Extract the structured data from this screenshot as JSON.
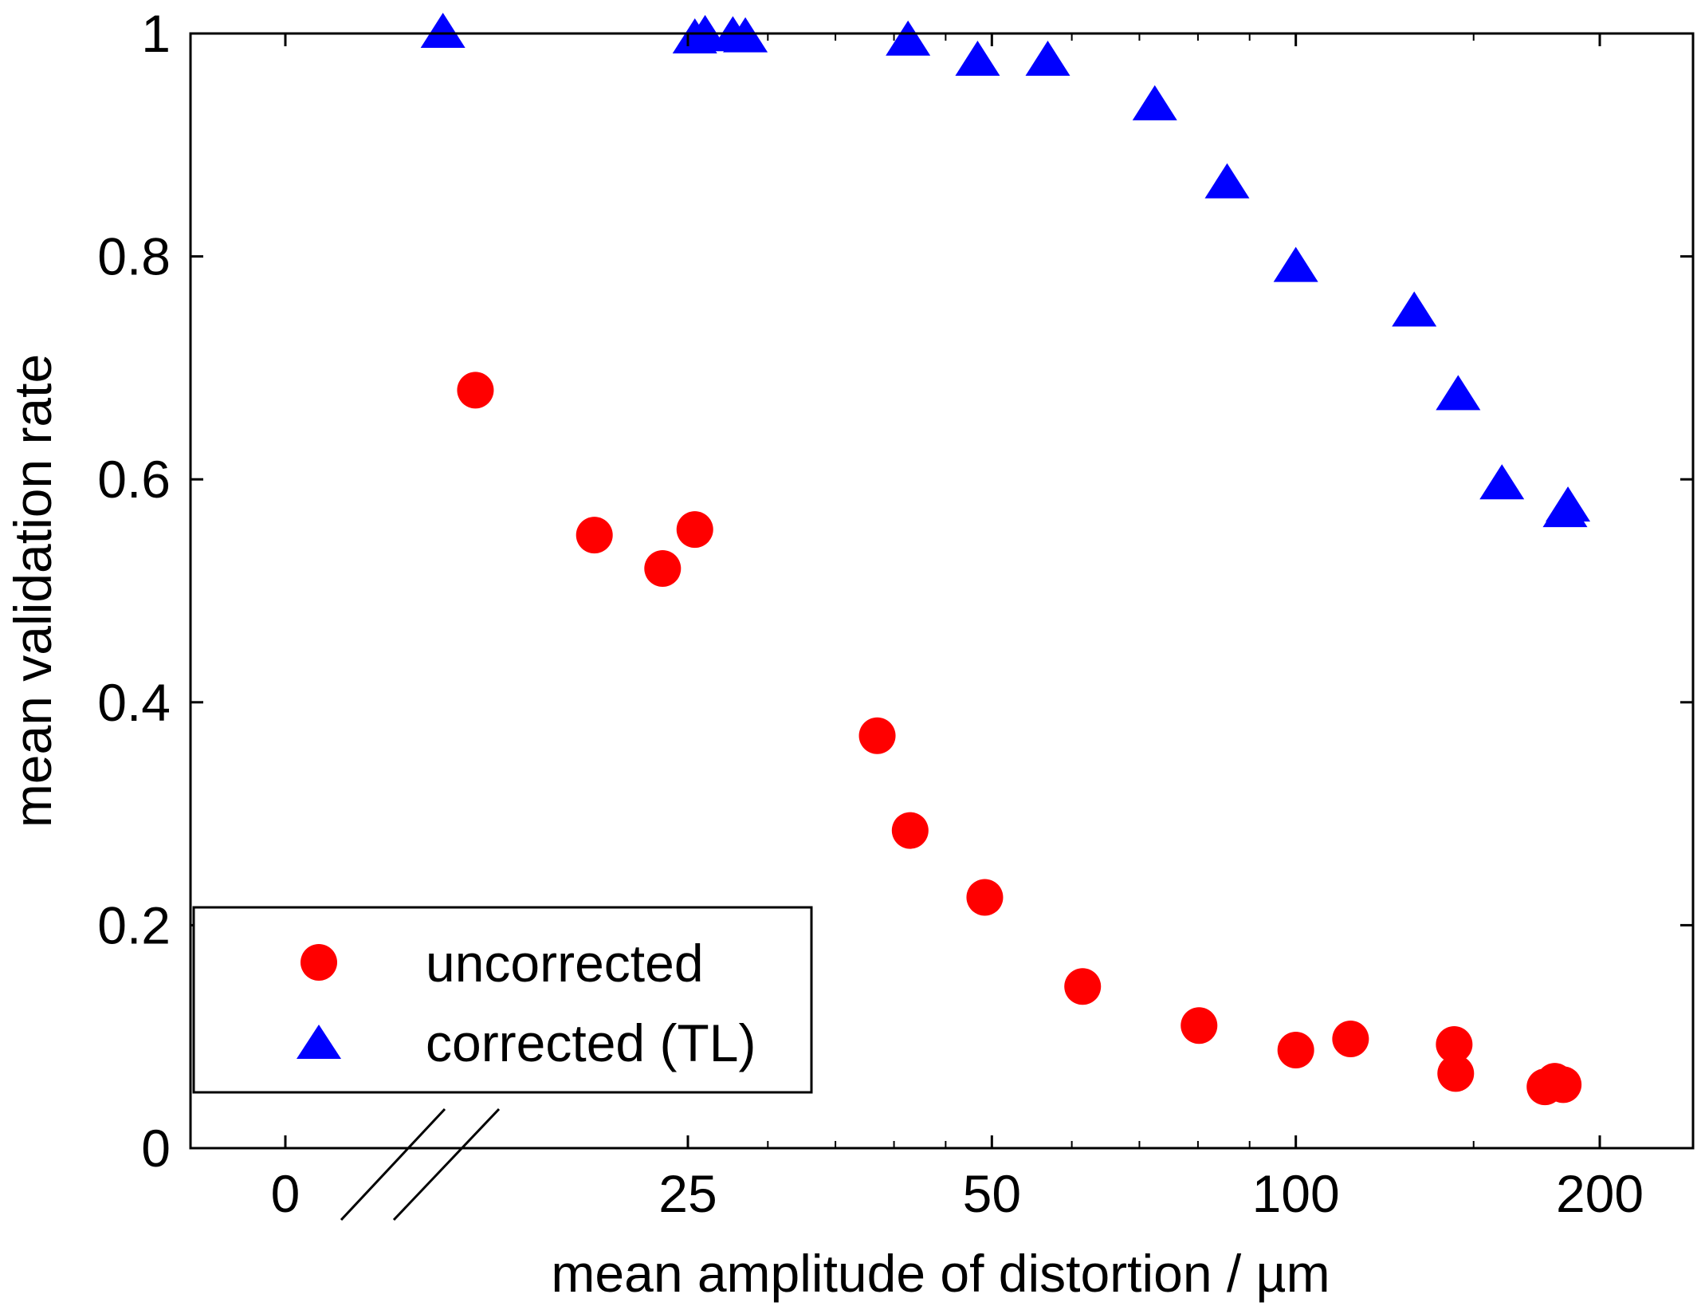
{
  "chart_data": {
    "type": "scatter",
    "xlabel": "mean amplitude of distortion / µm",
    "ylabel": "mean validation rate",
    "x_scale": "broken-log (0 shown separately, then log scale)",
    "x_ticks": [
      {
        "label": "0",
        "value": 0
      },
      {
        "label": "25",
        "value": 25
      },
      {
        "label": "50",
        "value": 50
      },
      {
        "label": "100",
        "value": 100
      },
      {
        "label": "200",
        "value": 200
      }
    ],
    "ylim": [
      0,
      1
    ],
    "y_ticks": [
      "0",
      "0.2",
      "0.4",
      "0.6",
      "0.8",
      "1"
    ],
    "legend": {
      "position": "bottom-left",
      "entries": [
        {
          "label": "uncorrected",
          "marker": "circle",
          "color": "#ff0000"
        },
        {
          "label": "corrected (TL)",
          "marker": "triangle",
          "color": "#0000ff"
        }
      ]
    },
    "series": [
      {
        "name": "uncorrected",
        "color": "#ff0000",
        "marker": "circle",
        "points": [
          {
            "x": 15.4,
            "y": 0.68
          },
          {
            "x": 20.2,
            "y": 0.55
          },
          {
            "x": 23.6,
            "y": 0.52
          },
          {
            "x": 25.4,
            "y": 0.555
          },
          {
            "x": 38.5,
            "y": 0.37
          },
          {
            "x": 41.5,
            "y": 0.285
          },
          {
            "x": 49.2,
            "y": 0.225
          },
          {
            "x": 61.5,
            "y": 0.145
          },
          {
            "x": 80.2,
            "y": 0.11
          },
          {
            "x": 100.0,
            "y": 0.088
          },
          {
            "x": 113.3,
            "y": 0.098
          },
          {
            "x": 143.5,
            "y": 0.093
          },
          {
            "x": 144.0,
            "y": 0.067
          },
          {
            "x": 176.5,
            "y": 0.055
          },
          {
            "x": 180.5,
            "y": 0.06
          },
          {
            "x": 184.0,
            "y": 0.057
          }
        ]
      },
      {
        "name": "corrected (TL)",
        "color": "#0000ff",
        "marker": "triangle",
        "points": [
          {
            "x": 14.3,
            "y": 1.0
          },
          {
            "x": 25.4,
            "y": 0.995
          },
          {
            "x": 26.0,
            "y": 0.998
          },
          {
            "x": 27.7,
            "y": 0.997
          },
          {
            "x": 28.5,
            "y": 0.996
          },
          {
            "x": 41.3,
            "y": 0.993
          },
          {
            "x": 48.4,
            "y": 0.975
          },
          {
            "x": 56.8,
            "y": 0.975
          },
          {
            "x": 72.5,
            "y": 0.935
          },
          {
            "x": 85.5,
            "y": 0.865
          },
          {
            "x": 100.0,
            "y": 0.79
          },
          {
            "x": 131.0,
            "y": 0.75
          },
          {
            "x": 144.8,
            "y": 0.675
          },
          {
            "x": 160.0,
            "y": 0.595
          },
          {
            "x": 184.8,
            "y": 0.57
          },
          {
            "x": 186.0,
            "y": 0.575
          }
        ]
      }
    ]
  }
}
